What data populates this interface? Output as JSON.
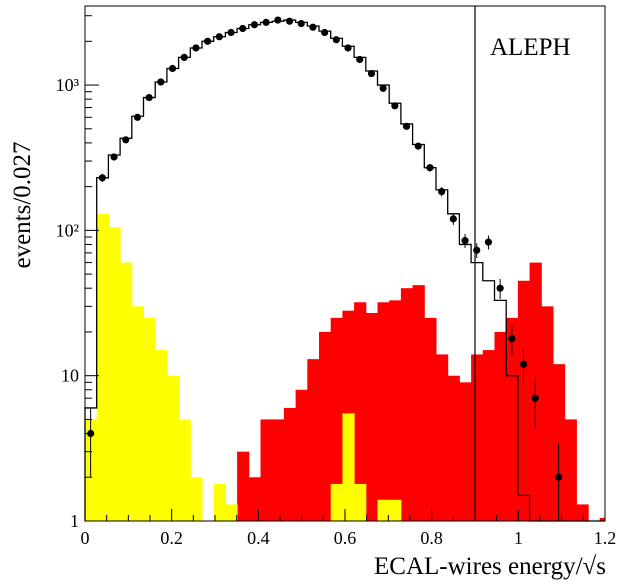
{
  "chart_data": {
    "type": "histogram",
    "scale": {
      "y": "log"
    },
    "xlabel": "ECAL-wires energy/√s",
    "ylabel": "events/0.027",
    "annotation": "ALEPH",
    "x_range": [
      0,
      1.2
    ],
    "y_range": [
      1,
      3500
    ],
    "x_ticks": [
      "0",
      "0.2",
      "0.4",
      "0.6",
      "0.8",
      "1",
      "1.2"
    ],
    "y_ticks": [
      {
        "value": 1,
        "label": "1"
      },
      {
        "value": 10,
        "label": "10"
      },
      {
        "value": 100,
        "label": "10²"
      },
      {
        "value": 1000,
        "label": "10³"
      }
    ],
    "bin_width": 0.027,
    "bins_start": 0,
    "cut_line_x": 0.9,
    "series": [
      {
        "role": "simulation total",
        "style": "step-outline",
        "color": "#000000",
        "values": [
          6,
          230,
          330,
          430,
          610,
          820,
          1050,
          1300,
          1550,
          1800,
          2000,
          2150,
          2300,
          2450,
          2600,
          2700,
          2750,
          2800,
          2700,
          2550,
          2350,
          2100,
          1850,
          1550,
          1250,
          1000,
          750,
          540,
          390,
          270,
          190,
          130,
          80,
          60,
          45,
          33,
          10,
          1.5,
          1,
          1,
          1,
          1,
          1,
          1,
          1
        ]
      },
      {
        "role": "background component A",
        "style": "filled",
        "color": "#ff0000",
        "values": [
          0,
          0,
          0,
          0,
          0,
          0,
          0,
          0,
          0,
          0,
          0,
          0,
          0,
          0,
          0,
          0,
          0,
          0,
          0,
          0,
          0,
          0,
          0,
          0,
          0,
          0,
          0,
          0,
          0,
          0,
          0,
          0,
          0,
          0,
          0,
          0,
          0,
          0,
          0,
          0,
          0,
          0,
          1.3,
          0,
          1.05
        ]
      },
      {
        "role": "background component B",
        "style": "filled",
        "color": "#ff0000",
        "values": [
          0,
          0,
          0,
          0,
          0,
          0,
          0,
          0,
          0,
          0,
          0,
          0,
          0,
          3,
          2,
          5,
          5,
          6,
          8,
          13,
          20,
          25,
          28,
          32,
          27,
          32,
          33,
          40,
          42,
          25,
          14,
          10,
          9,
          14,
          15,
          20,
          25,
          45,
          60,
          30,
          12,
          5,
          1.3,
          0,
          1.05
        ]
      },
      {
        "role": "background component C",
        "style": "filled",
        "color": "#ffff00",
        "values": [
          5,
          130,
          105,
          60,
          30,
          25,
          15,
          10,
          5,
          2,
          0,
          1.8,
          1.3,
          0,
          0,
          0,
          0,
          0,
          0,
          0,
          0,
          1.8,
          5.5,
          1.8,
          0,
          1.4,
          1.4,
          0,
          0,
          0,
          0,
          0,
          0,
          0,
          0,
          0,
          0,
          0,
          0,
          0,
          0,
          0,
          0,
          0,
          0
        ]
      },
      {
        "role": "data",
        "style": "points",
        "color": "#000000",
        "points": [
          {
            "x": 0.013,
            "y": 4
          },
          {
            "x": 0.04,
            "y": 230
          },
          {
            "x": 0.067,
            "y": 320
          },
          {
            "x": 0.094,
            "y": 420
          },
          {
            "x": 0.121,
            "y": 600
          },
          {
            "x": 0.148,
            "y": 820
          },
          {
            "x": 0.175,
            "y": 1050
          },
          {
            "x": 0.202,
            "y": 1300
          },
          {
            "x": 0.229,
            "y": 1550
          },
          {
            "x": 0.256,
            "y": 1800
          },
          {
            "x": 0.283,
            "y": 2000
          },
          {
            "x": 0.31,
            "y": 2150
          },
          {
            "x": 0.337,
            "y": 2300
          },
          {
            "x": 0.364,
            "y": 2450
          },
          {
            "x": 0.391,
            "y": 2600
          },
          {
            "x": 0.418,
            "y": 2700
          },
          {
            "x": 0.445,
            "y": 2800
          },
          {
            "x": 0.472,
            "y": 2750
          },
          {
            "x": 0.499,
            "y": 2650
          },
          {
            "x": 0.526,
            "y": 2500
          },
          {
            "x": 0.553,
            "y": 2300
          },
          {
            "x": 0.58,
            "y": 2050
          },
          {
            "x": 0.607,
            "y": 1800
          },
          {
            "x": 0.634,
            "y": 1500
          },
          {
            "x": 0.661,
            "y": 1200
          },
          {
            "x": 0.688,
            "y": 950
          },
          {
            "x": 0.715,
            "y": 720
          },
          {
            "x": 0.742,
            "y": 520
          },
          {
            "x": 0.769,
            "y": 380
          },
          {
            "x": 0.796,
            "y": 270
          },
          {
            "x": 0.823,
            "y": 185
          },
          {
            "x": 0.85,
            "y": 120
          },
          {
            "x": 0.877,
            "y": 85
          },
          {
            "x": 0.904,
            "y": 73
          },
          {
            "x": 0.931,
            "y": 83
          },
          {
            "x": 0.958,
            "y": 40
          },
          {
            "x": 0.985,
            "y": 18
          },
          {
            "x": 1.012,
            "y": 12
          },
          {
            "x": 1.039,
            "y": 7
          },
          {
            "x": 1.093,
            "y": 2
          }
        ]
      }
    ]
  }
}
